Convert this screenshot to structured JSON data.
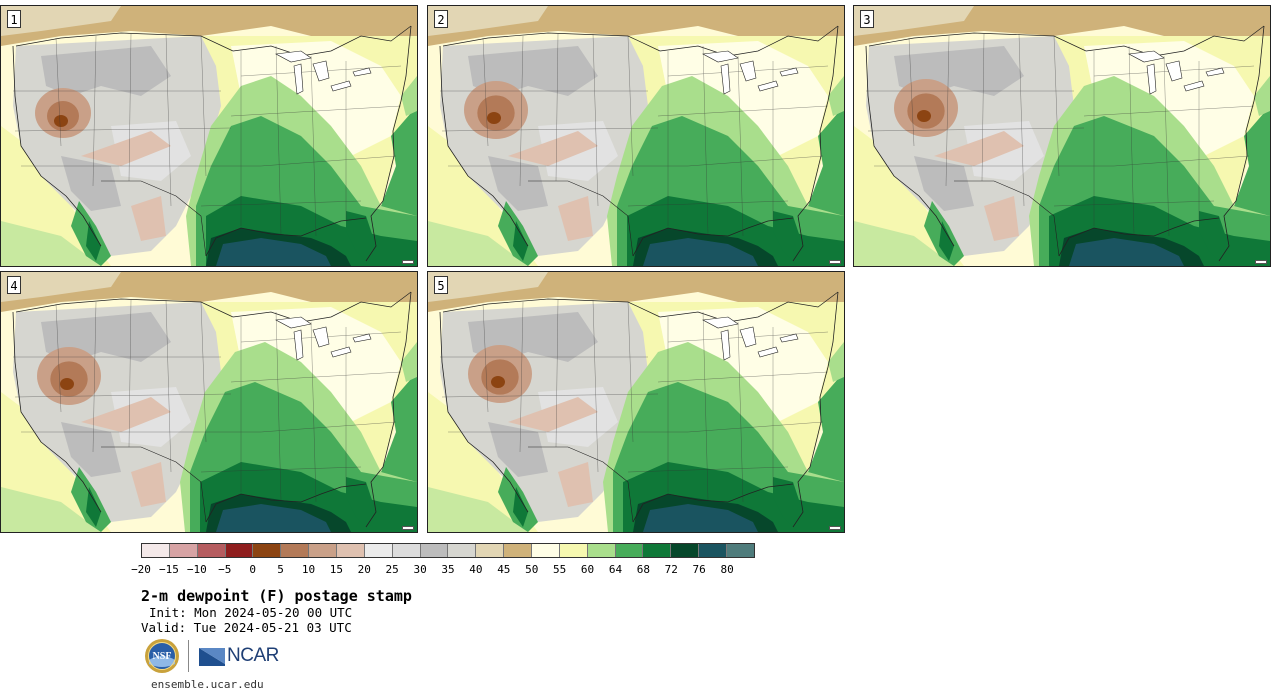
{
  "panels": [
    {
      "label": "1",
      "variant": 0
    },
    {
      "label": "2",
      "variant": 1
    },
    {
      "label": "3",
      "variant": 2
    },
    {
      "label": "4",
      "variant": 1
    },
    {
      "label": "5",
      "variant": 2
    }
  ],
  "colorbar": {
    "colors": [
      "#f4e9e9",
      "#d7a3a4",
      "#b55c5f",
      "#8f1e1e",
      "#8c4412",
      "#b37a58",
      "#c9a088",
      "#dfc1b0",
      "#ebebeb",
      "#dcdcdc",
      "#bcbcbc",
      "#d6d6d0",
      "#e2d6b4",
      "#cfb27a",
      "#fffee6",
      "#f6f8b0",
      "#a9de8c",
      "#47ac5a",
      "#0f7838",
      "#06472b",
      "#1a5460",
      "#4f7c7c"
    ],
    "ticks": [
      "−20",
      "−15",
      "−10",
      "−5",
      "0",
      "5",
      "10",
      "15",
      "20",
      "25",
      "30",
      "35",
      "40",
      "45",
      "50",
      "55",
      "60",
      "64",
      "68",
      "72",
      "76",
      "80"
    ]
  },
  "title": "2-m dewpoint (F) postage stamp",
  "init": "Init: Mon 2024-05-20 00 UTC",
  "valid": "Valid: Tue 2024-05-21 03 UTC",
  "logos": {
    "nsf": "NSF",
    "ncar": "NCAR"
  },
  "url": "ensemble.ucar.edu"
}
